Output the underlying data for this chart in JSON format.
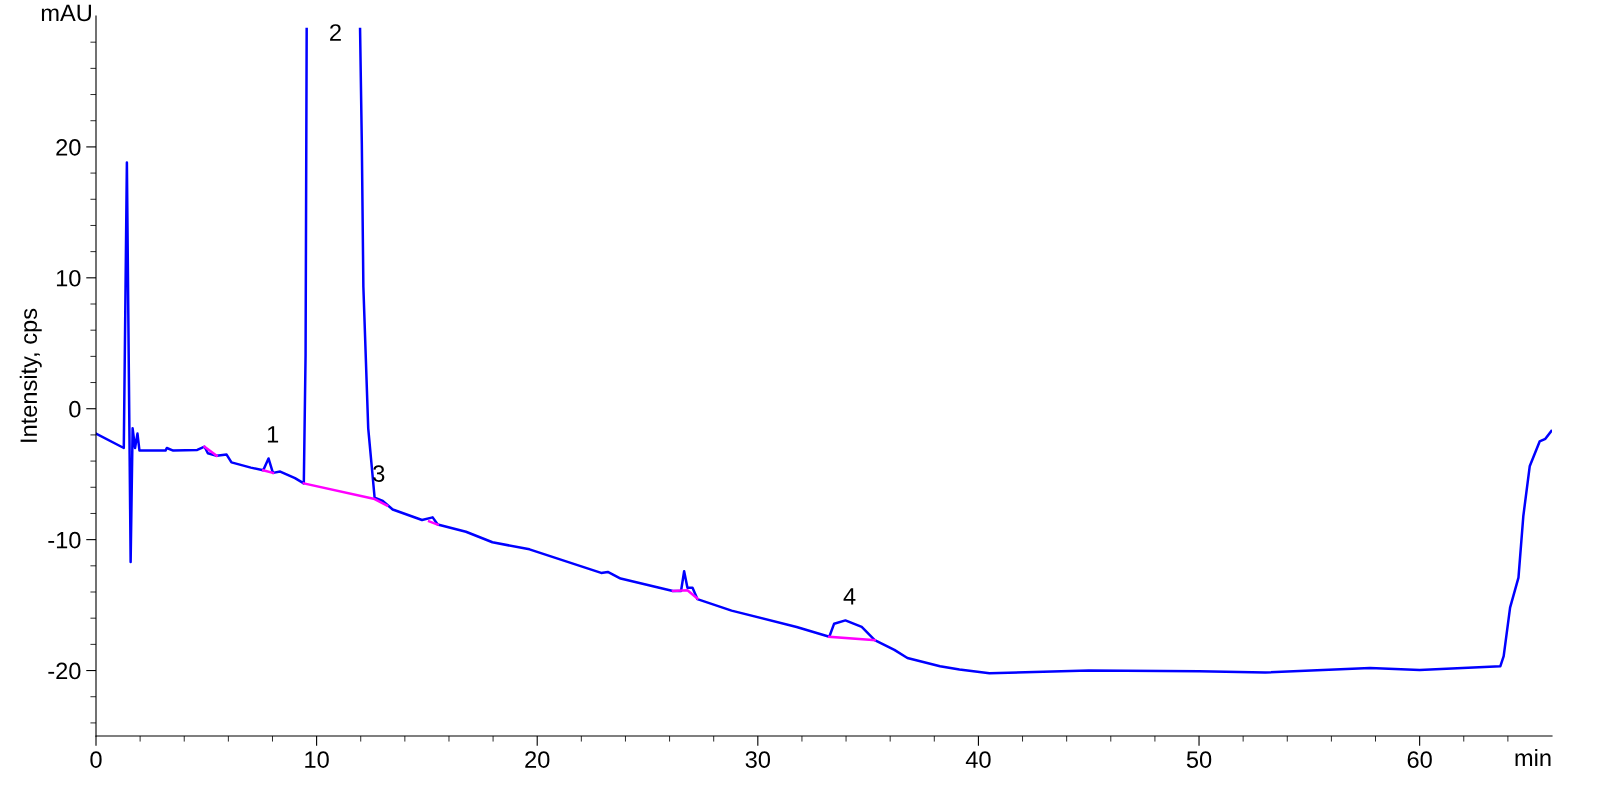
{
  "chart_data": {
    "type": "line",
    "xlabel": "min",
    "ylabel": "Intensity, cps",
    "annotations": [
      "mAU",
      {
        "text": "1",
        "x": 7.82,
        "y": -3.8
      },
      {
        "text": "2",
        "x": 9.55,
        "y": 29
      },
      {
        "text": "3",
        "x": 12.63,
        "y": -6.8
      },
      {
        "text": "4",
        "x": 33.97,
        "y": -16.17
      }
    ],
    "xlim": [
      0,
      66
    ],
    "ylim": [
      -25,
      30
    ],
    "xticks": [
      0,
      {
        "value": 2,
        "label": null
      },
      {
        "value": 4,
        "label": null
      },
      {
        "value": 6,
        "label": null
      },
      {
        "value": 8,
        "label": null
      },
      10,
      {
        "value": 12,
        "label": null
      },
      {
        "value": 14,
        "label": null
      },
      {
        "value": 16,
        "label": null
      },
      {
        "value": 18,
        "label": null
      },
      20,
      {
        "value": 22,
        "label": null
      },
      {
        "value": 24,
        "label": null
      },
      {
        "value": 26,
        "label": null
      },
      {
        "value": 28,
        "label": null
      },
      30,
      {
        "value": 32,
        "label": null
      },
      {
        "value": 34,
        "label": null
      },
      {
        "value": 36,
        "label": null
      },
      {
        "value": 38,
        "label": null
      },
      40,
      {
        "value": 42,
        "label": null
      },
      {
        "value": 44,
        "label": null
      },
      {
        "value": 46,
        "label": null
      },
      {
        "value": 48,
        "label": null
      },
      50,
      {
        "value": 52,
        "label": null
      },
      {
        "value": 54,
        "label": null
      },
      {
        "value": 56,
        "label": null
      },
      {
        "value": 58,
        "label": null
      },
      60,
      {
        "value": 62,
        "label": null
      },
      {
        "value": 64,
        "label": null
      }
    ],
    "yticks": [
      {
        "value": -24,
        "label": null
      },
      {
        "value": -22,
        "label": null
      },
      -20,
      {
        "value": -18,
        "label": null
      },
      {
        "value": -16,
        "label": null
      },
      {
        "value": -14,
        "label": null
      },
      {
        "value": -12,
        "label": null
      },
      -10,
      {
        "value": -8,
        "label": null
      },
      {
        "value": -6,
        "label": null
      },
      {
        "value": -4,
        "label": null
      },
      {
        "value": -2,
        "label": null
      },
      0,
      {
        "value": 2,
        "label": null
      },
      {
        "value": 4,
        "label": null
      },
      {
        "value": 6,
        "label": null
      },
      {
        "value": 8,
        "label": null
      },
      10,
      {
        "value": 12,
        "label": null
      },
      {
        "value": 14,
        "label": null
      },
      {
        "value": 16,
        "label": null
      },
      {
        "value": 18,
        "label": null
      },
      20,
      {
        "value": 22,
        "label": null
      },
      {
        "value": 24,
        "label": null
      },
      {
        "value": 26,
        "label": null
      },
      {
        "value": 28,
        "label": null
      }
    ],
    "grid": false,
    "legend": false,
    "marker": "none",
    "line_style": "solid",
    "series": [
      {
        "color": "#0000ff",
        "x": [
          0,
          1.26,
          1.4,
          1.57,
          1.66,
          1.77,
          1.88,
          1.97,
          3.15,
          3.21,
          3.5,
          4.59,
          4.92,
          5.07,
          5.47,
          5.92,
          6.14,
          7.02,
          7.58,
          7.82,
          8.02,
          8.35,
          9.02,
          9.42,
          9.5,
          9.55,
          9.6,
          11.97,
          12.05,
          12.12,
          12.34,
          12.63,
          13.0,
          13.45,
          14.78,
          15.26,
          15.49,
          16.77,
          17.97,
          19.65,
          22.9,
          23.2,
          23.78,
          26.15,
          26.52,
          26.66,
          26.81,
          27.04,
          27.26,
          28.81,
          31.76,
          33.24,
          33.46,
          33.97,
          34.71,
          35.3,
          36.19,
          36.78,
          38.26,
          39.14,
          40.5,
          45,
          50,
          53,
          57.75,
          60,
          63.66,
          63.81,
          64.1,
          64.48,
          64.7,
          64.99,
          65.44,
          65.7,
          65.97
        ],
        "values": [
          -1.9,
          -3.0,
          18.8,
          -11.7,
          -1.5,
          -3.0,
          -1.9,
          -3.2,
          -3.2,
          -3.0,
          -3.2,
          -3.15,
          -2.9,
          -3.4,
          -3.6,
          -3.5,
          -4.1,
          -4.5,
          -4.7,
          -3.8,
          -4.9,
          -4.8,
          -5.3,
          -5.7,
          4.1,
          29,
          null,
          29,
          20.2,
          9.3,
          -1.5,
          -6.8,
          -7.05,
          -7.7,
          -8.5,
          -8.3,
          -8.85,
          -9.4,
          -10.2,
          -10.74,
          -12.54,
          -12.47,
          -12.97,
          -13.92,
          -13.92,
          -12.42,
          -13.67,
          -13.67,
          -14.54,
          -15.42,
          -16.67,
          -17.42,
          -16.42,
          -16.17,
          -16.67,
          -17.67,
          -18.42,
          -19.04,
          -19.67,
          -19.92,
          -20.2,
          -20.0,
          -20.05,
          -20.15,
          -19.8,
          -19.95,
          -19.67,
          -18.9,
          -15.2,
          -12.9,
          -8.2,
          -4.4,
          -2.5,
          -2.3,
          -1.7
        ]
      },
      {
        "color": "#ff00ff",
        "x": [
          4.92,
          5.47,
          5.5,
          7.58,
          8.02,
          8.1,
          9.42,
          12.63,
          13.2,
          13.3,
          15.1,
          15.49,
          15.6,
          26.15,
          26.81,
          27.26,
          27.3,
          33.24,
          35.3
        ],
        "values": [
          -2.9,
          -3.6,
          null,
          -4.7,
          -4.9,
          null,
          -5.7,
          -6.9,
          -7.4,
          null,
          -8.6,
          -8.85,
          null,
          -13.92,
          -13.87,
          -14.5,
          null,
          -17.42,
          -17.67
        ]
      }
    ]
  }
}
